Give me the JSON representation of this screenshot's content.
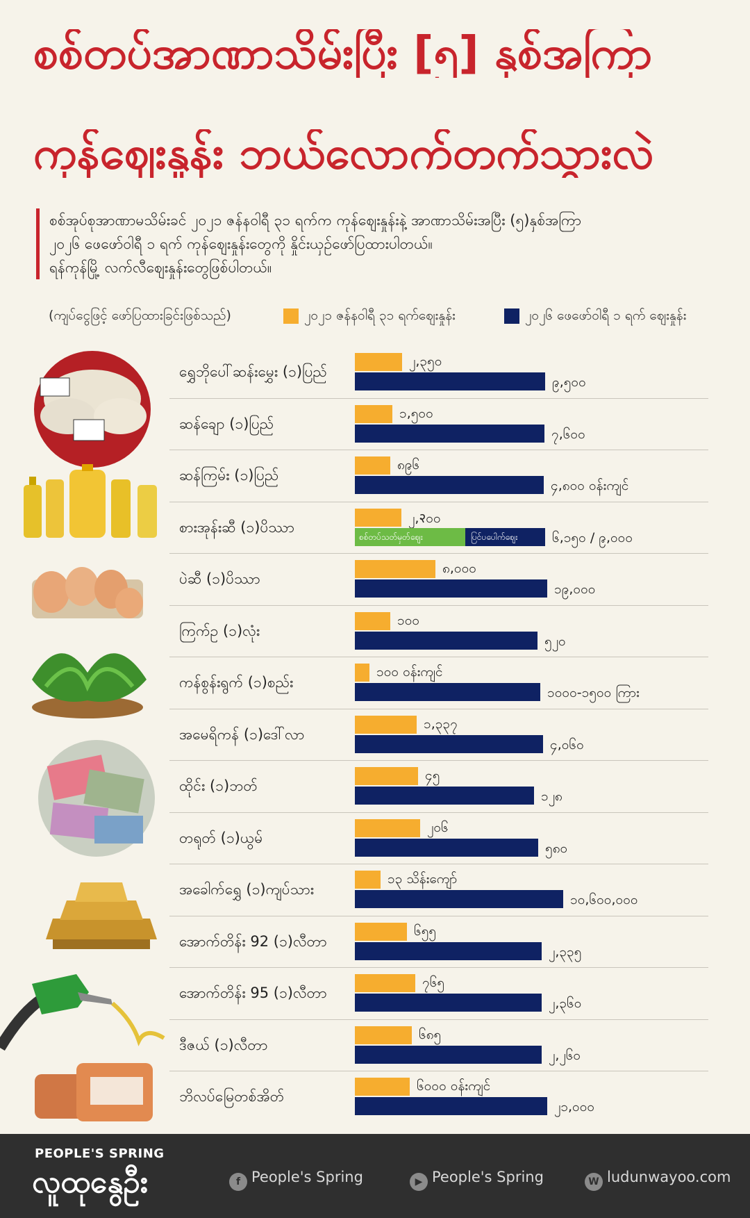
{
  "header": {
    "title_line1": "စစ်တပ်အာဏာသိမ်းပြီး [၅] နှစ်အကြာ",
    "title_line2": "ကုန်ဈေးနှုန်း ဘယ်လောက်တက်သွားလဲ",
    "intro_line1": "စစ်အုပ်စုအာဏာမသိမ်းခင် ၂၀၂၁ ဇန်နဝါရီ ၃၁ ရက်က ကုန်ဈေးနှုန်းနဲ့ အာဏာသိမ်းအပြီး (၅)နှစ်အကြာ",
    "intro_line2": "၂၀၂၆ ဖေဖော်ဝါရီ ၁ ရက် ကုန်ဈေးနှုန်းတွေကို နှိုင်းယှဉ်ဖော်ပြထားပါတယ်။",
    "intro_line3": "ရန်ကုန်မြို့ လက်လီဈေးနှုန်းတွေဖြစ်ပါတယ်။"
  },
  "legend": {
    "note": "(ကျပ်ငွေဖြင့် ဖော်ပြထားခြင်းဖြစ်သည်)",
    "before_label": "၂၀၂၁ ဇန်နဝါရီ ၃၁ ရက်ဈေးနှုန်း",
    "after_label": "၂၀၂၆ ဖေဖော်ဝါရီ ၁ ရက် ဈေးနှုန်း",
    "before_color": "#f6ad2f",
    "after_color": "#0f2263"
  },
  "chart_data": {
    "type": "bar",
    "title": "",
    "xlabel": "",
    "ylabel": "",
    "categories": [
      "ရွှေဘိုပေါ်ဆန်းမွှေး (၁)ပြည်",
      "ဆန်ချော (၁)ပြည်",
      "ဆန်ကြမ်း (၁)ပြည်",
      "စားအုန်းဆီ (၁)ပိဿာ",
      "ပဲဆီ (၁)ပိဿာ",
      "ကြက်ဥ (၁)လုံး",
      "ကန်စွန်းရွက် (၁)စည်း",
      "အမေရိကန် (၁)ဒေါ်လာ",
      "ထိုင်း (၁)ဘတ်",
      "တရုတ် (၁)ယွမ်",
      "အခေါက်ရွှေ (၁)ကျပ်သား",
      "အောက်တိန်း 92 (၁)လီတာ",
      "အောက်တိန်း 95 (၁)လီတာ",
      "ဒီဇယ် (၁)လီတာ",
      "ဘိလပ်မြေတစ်အိတ်"
    ],
    "before_text": [
      "၂,၃၅၀",
      "၁,၅၀၀",
      "၈၉၆",
      "၂,२၀၀",
      "၈,၀၀၀",
      "၁၀၀",
      "၁၀၀ ဝန်းကျင်",
      "၁,၃၃၇",
      "၄၅",
      "၂၀၆",
      "၁၃ သိန်းကျော်",
      "၆၅၅",
      "၇၆၅",
      "၆၈၅",
      "၆၀၀၀ ဝန်းကျင်"
    ],
    "after_text": [
      "၉,၅၀၀",
      "၇,၆၀၀",
      "၄,၈၀၀ ဝန်းကျင်",
      "၆,၁၅၀ / ၉,၀၀၀",
      "၁၉,၀၀၀",
      "၅၂၀",
      "၁၀၀၀-၁၅၀၀ ကြား",
      "၄,၀၆၀",
      "၁၂၈",
      "၅၈၀",
      "၁၀,၆၀၀,၀၀၀",
      "၂,၃၃၅",
      "၂,၃၆၀",
      "၂,၂၆၀",
      "၂၁,၀၀၀"
    ],
    "series": [
      {
        "name": "၂၀၂၁ ဇန်နဝါရီ ၃၁ ရက်ဈေးနှုန်း",
        "values": [
          2350,
          1500,
          896,
          2200,
          8000,
          100,
          100,
          1337,
          45,
          206,
          1300000,
          655,
          765,
          685,
          6000
        ]
      },
      {
        "name": "၂၀၂၆ ဖေဖော်ဝါရီ ၁ ရက် ဈေးနှုန်း",
        "values": [
          9500,
          7600,
          4800,
          9000,
          19000,
          520,
          1250,
          4060,
          128,
          580,
          10600000,
          2335,
          2360,
          2260,
          21000
        ]
      }
    ],
    "edible_oil_split": {
      "low_label": "စစ်တပ်သတ်မှတ်ဈေး",
      "high_label": "ပြင်ပပေါက်ဈေး",
      "low_value": 6150,
      "high_value": 9000
    }
  },
  "footer": {
    "brand_en": "PEOPLE'S SPRING",
    "brand_mm": "လူထုနွေဦး",
    "facebook": "People's Spring",
    "youtube": "People's Spring",
    "website": "ludunwayoo.com"
  }
}
